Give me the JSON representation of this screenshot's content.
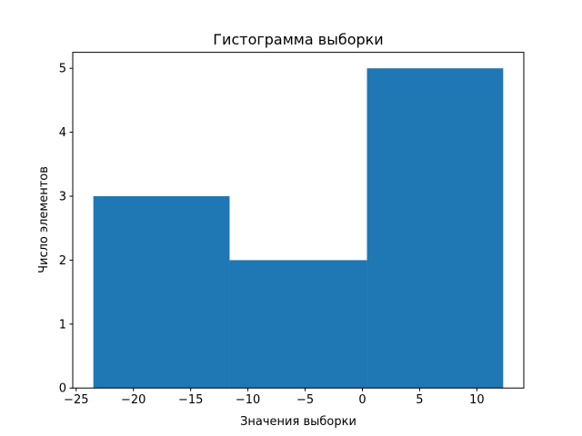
{
  "chart_data": {
    "type": "bar",
    "title": "Гистограмма выборки",
    "xlabel": "Значения выборки",
    "ylabel": "Число элементов",
    "bin_edges": [
      -23.5,
      -11.6,
      0.4,
      12.3
    ],
    "values": [
      3,
      2,
      5
    ],
    "xlim": [
      -25.3,
      14.1
    ],
    "ylim": [
      0,
      5.25
    ],
    "xticks": [
      -25,
      -20,
      -15,
      -10,
      -5,
      0,
      5,
      10
    ],
    "xtick_labels": [
      "−25",
      "−20",
      "−15",
      "−10",
      "−5",
      "0",
      "5",
      "10"
    ],
    "yticks": [
      0,
      1,
      2,
      3,
      4,
      5
    ],
    "ytick_labels": [
      "0",
      "1",
      "2",
      "3",
      "4",
      "5"
    ],
    "grid": false,
    "color": "#1f77b4"
  }
}
